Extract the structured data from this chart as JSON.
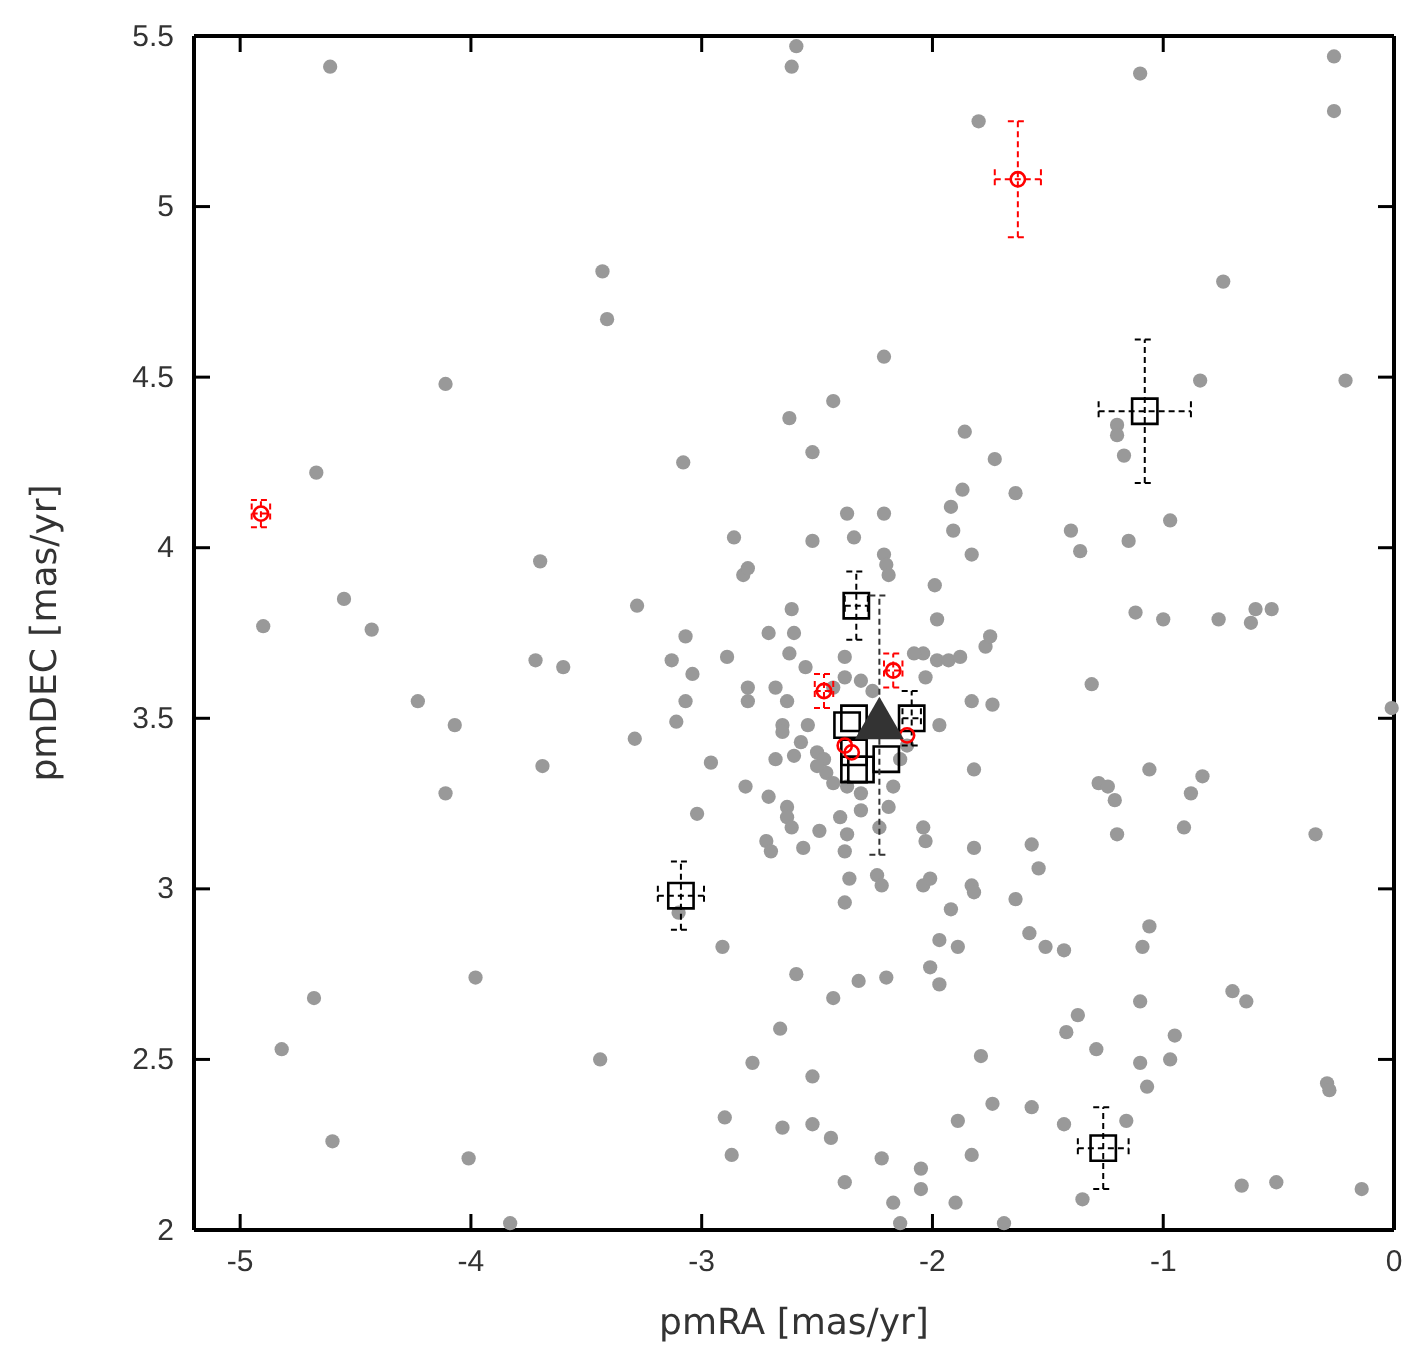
{
  "chart_data": {
    "type": "scatter",
    "xlabel": "pmRA [mas/yr]",
    "ylabel": "pmDEC [mas/yr]",
    "xlim": [
      -5.2,
      0
    ],
    "ylim": [
      2,
      5.5
    ],
    "xticks": [
      -5,
      -4,
      -3,
      -2,
      -1,
      0
    ],
    "yticks": [
      2,
      2.5,
      3,
      3.5,
      4,
      4.5,
      5,
      5.5
    ],
    "grid": false,
    "series": [
      {
        "color": "#999999",
        "marker": "circle",
        "x": [
          -4.61,
          -2.61,
          -2.59,
          -3.43,
          -3.41,
          -4.11,
          -2.62,
          -3.08,
          -4.67,
          -2.86,
          -2.82,
          -2.8,
          -3.7,
          -4.55,
          -3.28,
          -2.61,
          -4.9,
          -4.43,
          -0.26,
          -1.1,
          -0.26,
          -1.8,
          -0.74,
          -2.21,
          -0.84,
          -0.21,
          -2.43,
          -1.2,
          -1.2,
          -1.86,
          -2.52,
          -1.73,
          -1.17,
          -1.87,
          -1.64,
          -1.92,
          -2.37,
          -2.21,
          -1.91,
          -2.52,
          -2.34,
          -1.4,
          -0.97,
          -1.15,
          -1.36,
          -1.83,
          -2.21,
          -2.2,
          -2.19,
          -1.99,
          -1.98,
          -1.12,
          -1.0,
          -0.76,
          -0.6,
          -0.53,
          -0.62,
          -3.72,
          -3.6,
          -4.23,
          -4.07,
          -3.69,
          -4.11,
          -3.13,
          -3.07,
          -2.89,
          -3.04,
          -3.07,
          -3.29,
          -3.11,
          -2.8,
          -2.8,
          -2.68,
          -2.62,
          -2.65,
          -2.65,
          -2.96,
          -2.68,
          -2.6,
          -2.81,
          -2.71,
          -2.63,
          -2.63,
          -2.61,
          -2.72,
          -2.7,
          -3.02,
          -3.1,
          -2.91,
          -2.59,
          -2.66,
          -2.78,
          -4.68,
          -3.98,
          -4.82,
          -3.44,
          -4.6,
          -4.01,
          -3.83,
          -2.9,
          -2.87,
          -2.65,
          -0.01,
          -1.31,
          -1.06,
          -1.28,
          -1.24,
          -1.21,
          -0.83,
          -0.88,
          -0.91,
          -1.2,
          -0.34,
          -1.57,
          -1.54,
          -1.82,
          -1.83,
          -1.74,
          -1.97,
          -2.04,
          -1.98,
          -1.93,
          -1.88,
          -1.77,
          -1.75,
          -2.03,
          -1.82,
          -2.04,
          -2.03,
          -2.23,
          -2.36,
          -2.24,
          -2.22,
          -2.38,
          -2.04,
          -2.01,
          -1.83,
          -1.82,
          -1.92,
          -1.64,
          -1.97,
          -1.89,
          -1.58,
          -1.51,
          -1.43,
          -1.06,
          -1.09,
          -2.01,
          -1.97,
          -2.2,
          -2.32,
          -2.43,
          -0.7,
          -0.64,
          -1.1,
          -1.37,
          -1.42,
          -1.29,
          -0.95,
          -0.97,
          -1.1,
          -1.07,
          -1.79,
          -2.52,
          -0.29,
          -0.28,
          -1.74,
          -1.57,
          -1.89,
          -2.52,
          -2.44,
          -1.43,
          -1.16,
          -1.83,
          -2.22,
          -2.05,
          -2.05,
          -2.38,
          -2.17,
          -1.9,
          -2.14,
          -1.69,
          -1.35,
          -0.66,
          -0.51,
          -0.14,
          -2.6,
          -2.71,
          -2.55,
          -2.38,
          -2.38,
          -2.43,
          -2.31,
          -2.26,
          -2.08,
          -2.63,
          -2.54,
          -2.57,
          -2.5,
          -2.47,
          -2.46,
          -2.5,
          -2.43,
          -2.37,
          -2.31,
          -2.17,
          -2.19,
          -2.4,
          -2.31,
          -2.49,
          -2.37,
          -2.56,
          -2.38,
          -2.14,
          -2.11
        ],
        "values": [
          5.41,
          5.41,
          5.47,
          4.81,
          4.67,
          4.48,
          4.38,
          4.25,
          4.22,
          4.03,
          3.92,
          3.94,
          3.96,
          3.85,
          3.83,
          3.82,
          3.77,
          3.76,
          5.44,
          5.39,
          5.28,
          5.25,
          4.78,
          4.56,
          4.49,
          4.49,
          4.43,
          4.36,
          4.33,
          4.34,
          4.28,
          4.26,
          4.27,
          4.17,
          4.16,
          4.12,
          4.1,
          4.1,
          4.05,
          4.02,
          4.03,
          4.05,
          4.08,
          4.02,
          3.99,
          3.98,
          3.98,
          3.95,
          3.92,
          3.89,
          3.79,
          3.81,
          3.79,
          3.79,
          3.82,
          3.82,
          3.78,
          3.67,
          3.65,
          3.55,
          3.48,
          3.36,
          3.28,
          3.67,
          3.74,
          3.68,
          3.63,
          3.55,
          3.44,
          3.49,
          3.59,
          3.55,
          3.59,
          3.69,
          3.48,
          3.46,
          3.37,
          3.38,
          3.39,
          3.3,
          3.27,
          3.24,
          3.21,
          3.18,
          3.14,
          3.11,
          3.22,
          2.93,
          2.83,
          2.75,
          2.59,
          2.49,
          2.68,
          2.74,
          2.53,
          2.5,
          2.26,
          2.21,
          2.02,
          2.33,
          2.22,
          2.3,
          3.53,
          3.6,
          3.35,
          3.31,
          3.3,
          3.26,
          3.33,
          3.28,
          3.18,
          3.16,
          3.16,
          3.13,
          3.06,
          3.35,
          3.55,
          3.54,
          3.48,
          3.69,
          3.67,
          3.67,
          3.68,
          3.71,
          3.74,
          3.62,
          3.12,
          3.18,
          3.14,
          3.18,
          3.03,
          3.04,
          3.01,
          2.96,
          3.01,
          3.03,
          3.01,
          2.99,
          2.94,
          2.97,
          2.85,
          2.83,
          2.87,
          2.83,
          2.82,
          2.89,
          2.83,
          2.77,
          2.72,
          2.74,
          2.73,
          2.68,
          2.7,
          2.67,
          2.67,
          2.63,
          2.58,
          2.53,
          2.57,
          2.5,
          2.49,
          2.42,
          2.51,
          2.45,
          2.43,
          2.41,
          2.37,
          2.36,
          2.32,
          2.31,
          2.27,
          2.31,
          2.32,
          2.22,
          2.21,
          2.18,
          2.12,
          2.14,
          2.08,
          2.08,
          2.02,
          2.02,
          2.09,
          2.13,
          2.14,
          2.12,
          3.75,
          3.75,
          3.65,
          3.68,
          3.62,
          3.59,
          3.61,
          3.58,
          3.69,
          3.55,
          3.48,
          3.43,
          3.4,
          3.38,
          3.34,
          3.36,
          3.31,
          3.3,
          3.28,
          3.3,
          3.24,
          3.21,
          3.23,
          3.17,
          3.16,
          3.12,
          3.11,
          3.38,
          3.42
        ]
      },
      {
        "color": "#000000",
        "marker": "square",
        "x": [
          -1.08,
          -2.33,
          -3.09,
          -1.26,
          -2.34,
          -2.37,
          -2.34,
          -2.34,
          -2.31,
          -2.09,
          -2.2
        ],
        "values": [
          4.4,
          3.83,
          2.98,
          2.24,
          3.5,
          3.48,
          3.4,
          3.35,
          3.35,
          3.5,
          3.38
        ],
        "errors": [
          0.21,
          0.1,
          0.1,
          0.12,
          null,
          null,
          null,
          null,
          null,
          0.08,
          null
        ],
        "xerrors": [
          0.2,
          0.05,
          0.1,
          0.11,
          null,
          null,
          null,
          null,
          null,
          0.04,
          null
        ]
      },
      {
        "color": "#ff0000",
        "marker": "circle",
        "x": [
          -1.63,
          -4.91,
          -2.47,
          -2.17,
          -2.38,
          -2.35,
          -2.11
        ],
        "values": [
          5.08,
          4.1,
          3.58,
          3.64,
          3.42,
          3.4,
          3.45
        ],
        "errors": [
          0.17,
          0.04,
          0.05,
          0.05,
          null,
          null,
          null
        ],
        "xerrors": [
          0.1,
          0.04,
          0.04,
          0.04,
          null,
          null,
          null
        ]
      },
      {
        "color": "#333333",
        "marker": "triangle",
        "x": [
          -2.23
        ],
        "values": [
          3.48
        ],
        "errors": [
          0.38
        ]
      }
    ]
  }
}
